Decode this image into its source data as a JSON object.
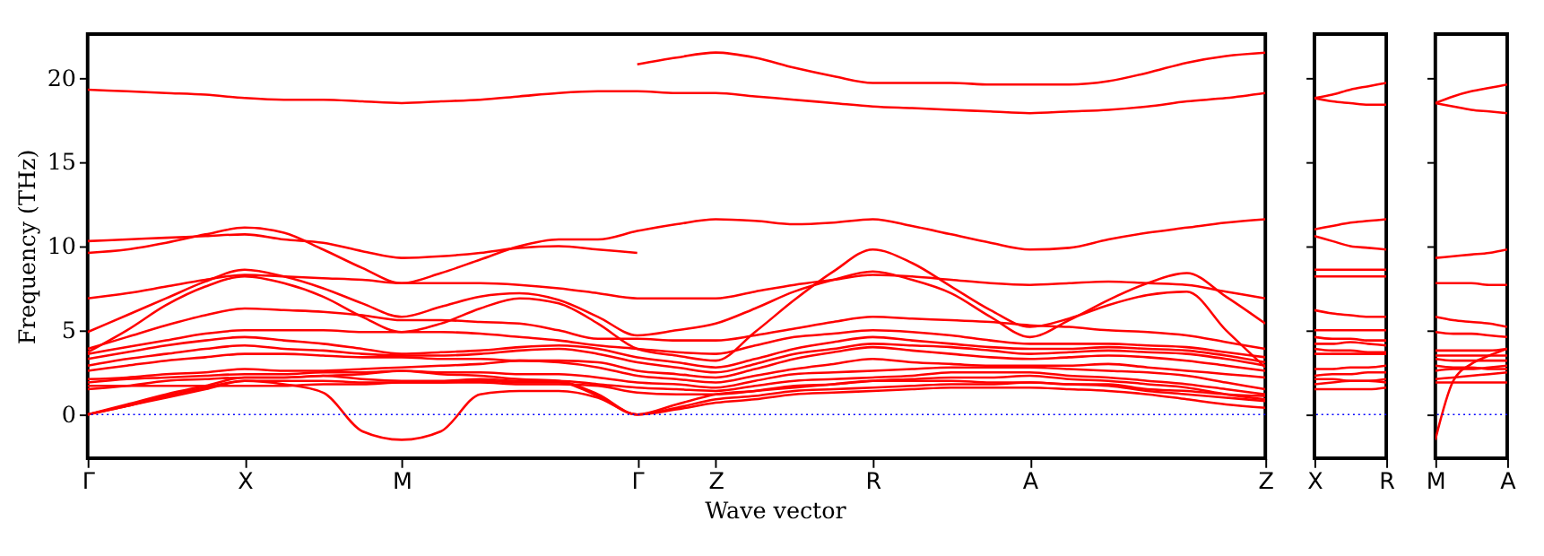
{
  "chart_data": [
    {
      "type": "line",
      "xlabel": "Wave vector",
      "ylabel": "Frequency (THz)",
      "ylim": [
        -2.6,
        22.6
      ],
      "categories": [
        "Γ",
        null,
        null,
        null,
        "X",
        null,
        null,
        null,
        "M",
        null,
        null,
        null,
        null,
        null,
        "Γ",
        null,
        "Z",
        null,
        null,
        null,
        "R",
        null,
        null,
        null,
        "A",
        null,
        null,
        null,
        null,
        null,
        "Z"
      ],
      "yticks": [
        0,
        5,
        10,
        15,
        20
      ],
      "grid": false,
      "ref_lines": [
        {
          "axis": "y",
          "value": 0,
          "color": "#0000ff",
          "line_style": "dotted"
        }
      ],
      "series": [
        {
          "color": "#ff0000",
          "values": [
            null,
            null,
            null,
            null,
            null,
            null,
            null,
            null,
            null,
            null,
            null,
            null,
            null,
            null,
            20.8,
            21.2,
            21.5,
            21.2,
            20.6,
            20.1,
            19.7,
            19.7,
            19.7,
            19.6,
            19.6,
            19.6,
            19.8,
            20.3,
            20.9,
            21.3,
            21.5
          ]
        },
        {
          "color": "#ff0000",
          "values": [
            19.3,
            19.2,
            19.1,
            19.0,
            18.8,
            18.7,
            18.7,
            18.6,
            18.5,
            18.6,
            18.7,
            18.9,
            19.1,
            19.2,
            19.2,
            19.1,
            19.1,
            18.9,
            18.7,
            18.5,
            18.3,
            18.2,
            18.1,
            18.0,
            17.9,
            18.0,
            18.1,
            18.3,
            18.6,
            18.8,
            19.1
          ]
        },
        {
          "color": "#ff0000",
          "values": [
            10.3,
            10.4,
            10.5,
            10.6,
            10.7,
            10.4,
            10.2,
            9.7,
            9.3,
            9.4,
            9.6,
            9.9,
            10.0,
            9.8,
            9.6,
            null,
            null,
            null,
            null,
            null,
            null,
            null,
            null,
            null,
            null,
            null,
            null,
            null,
            null,
            null,
            null
          ]
        },
        {
          "color": "#ff0000",
          "values": [
            9.6,
            9.8,
            10.2,
            10.7,
            11.1,
            10.8,
            9.8,
            8.7,
            7.8,
            8.4,
            9.2,
            10.0,
            10.4,
            10.4,
            10.9,
            11.3,
            11.6,
            11.5,
            11.3,
            11.4,
            11.6,
            11.2,
            10.7,
            10.2,
            9.8,
            9.9,
            10.4,
            10.8,
            11.1,
            11.4,
            11.6
          ]
        },
        {
          "color": "#ff0000",
          "values": [
            6.9,
            7.2,
            7.6,
            8.0,
            8.3,
            8.2,
            8.1,
            8.0,
            7.8,
            7.8,
            7.8,
            7.7,
            7.5,
            7.2,
            6.9,
            6.9,
            6.9,
            7.3,
            7.7,
            8.0,
            8.3,
            8.2,
            8.0,
            7.8,
            7.7,
            7.8,
            7.9,
            7.8,
            7.7,
            7.3,
            6.9
          ]
        },
        {
          "color": "#ff0000",
          "values": [
            4.9,
            5.9,
            6.9,
            7.9,
            8.6,
            8.2,
            7.5,
            6.6,
            5.8,
            6.4,
            7.0,
            7.2,
            6.8,
            5.8,
            4.7,
            5.0,
            5.4,
            6.3,
            7.3,
            8.0,
            8.5,
            8.0,
            7.2,
            5.8,
            4.6,
            5.6,
            6.8,
            7.8,
            8.4,
            7.0,
            5.4
          ]
        },
        {
          "color": "#ff0000",
          "values": [
            3.7,
            5.0,
            6.5,
            7.6,
            8.2,
            7.8,
            7.0,
            5.8,
            4.9,
            5.4,
            6.3,
            6.9,
            6.6,
            5.4,
            3.9,
            3.5,
            3.2,
            4.9,
            6.8,
            8.5,
            9.8,
            9.0,
            7.6,
            6.2,
            5.2,
            5.7,
            6.5,
            7.1,
            7.3,
            5.0,
            2.8
          ]
        },
        {
          "color": "#ff0000",
          "values": [
            3.9,
            4.6,
            5.3,
            5.9,
            6.3,
            6.2,
            6.1,
            5.9,
            5.6,
            5.6,
            5.5,
            5.4,
            5.0,
            4.5,
            4.5,
            4.4,
            4.4,
            4.7,
            5.1,
            5.5,
            5.8,
            5.7,
            5.6,
            5.5,
            5.3,
            5.2,
            5.0,
            4.9,
            4.7,
            4.3,
            3.9
          ]
        },
        {
          "color": "#ff0000",
          "values": [
            3.6,
            4.0,
            4.4,
            4.8,
            5.0,
            5.0,
            5.0,
            4.9,
            4.9,
            4.9,
            4.8,
            4.6,
            4.4,
            4.1,
            3.9,
            3.7,
            3.6,
            4.1,
            4.6,
            4.8,
            5.0,
            4.9,
            4.7,
            4.4,
            4.2,
            4.2,
            4.2,
            4.1,
            4.0,
            3.7,
            3.4
          ]
        },
        {
          "color": "#ff0000",
          "values": [
            3.3,
            3.7,
            4.1,
            4.4,
            4.6,
            4.4,
            4.2,
            3.9,
            3.6,
            3.7,
            3.8,
            4.0,
            4.1,
            3.9,
            3.4,
            3.1,
            2.8,
            3.3,
            3.9,
            4.3,
            4.6,
            4.4,
            4.2,
            4.0,
            3.9,
            3.9,
            4.0,
            3.9,
            3.8,
            3.5,
            3.1
          ]
        },
        {
          "color": "#ff0000",
          "values": [
            2.9,
            3.3,
            3.6,
            3.9,
            4.1,
            3.9,
            3.8,
            3.6,
            3.5,
            3.5,
            3.6,
            3.8,
            3.9,
            3.6,
            3.1,
            2.8,
            2.5,
            3.0,
            3.6,
            3.9,
            4.2,
            4.1,
            4.0,
            3.8,
            3.6,
            3.7,
            3.8,
            3.7,
            3.6,
            3.3,
            2.9
          ]
        },
        {
          "color": "#ff0000",
          "values": [
            2.6,
            2.9,
            3.2,
            3.4,
            3.6,
            3.6,
            3.5,
            3.4,
            3.4,
            3.3,
            3.3,
            3.2,
            3.2,
            3.1,
            2.6,
            2.4,
            2.2,
            2.7,
            3.3,
            3.7,
            4.0,
            3.8,
            3.6,
            3.4,
            3.3,
            3.4,
            3.5,
            3.4,
            3.2,
            2.9,
            2.6
          ]
        },
        {
          "color": "#ff0000",
          "values": [
            2.1,
            2.2,
            2.4,
            2.5,
            2.7,
            2.6,
            2.6,
            2.7,
            2.8,
            2.9,
            3.0,
            3.2,
            3.1,
            2.8,
            2.3,
            2.1,
            1.9,
            2.3,
            2.7,
            3.0,
            3.3,
            3.1,
            3.0,
            2.9,
            2.9,
            2.9,
            3.0,
            2.8,
            2.6,
            2.4,
            2.2
          ]
        },
        {
          "color": "#ff0000",
          "values": [
            1.9,
            2.1,
            2.2,
            2.3,
            2.4,
            2.4,
            2.5,
            2.5,
            2.6,
            2.5,
            2.5,
            2.4,
            2.4,
            2.2,
            1.9,
            1.8,
            1.6,
            2.0,
            2.4,
            2.5,
            2.6,
            2.7,
            2.8,
            2.8,
            2.8,
            2.7,
            2.6,
            2.5,
            2.3,
            1.9,
            1.5
          ]
        },
        {
          "color": "#ff0000",
          "values": [
            1.5,
            1.7,
            2.0,
            2.1,
            2.2,
            2.2,
            2.3,
            2.1,
            2.0,
            2.0,
            2.1,
            2.0,
            2.0,
            1.8,
            1.6,
            1.5,
            1.4,
            1.7,
            2.0,
            2.1,
            2.2,
            2.3,
            2.5,
            2.5,
            2.5,
            2.3,
            2.2,
            2.0,
            1.8,
            1.5,
            1.2
          ]
        },
        {
          "color": "#ff0000",
          "values": [
            1.7,
            1.7,
            1.7,
            1.7,
            1.7,
            1.7,
            1.8,
            1.8,
            1.9,
            1.9,
            1.9,
            1.8,
            1.8,
            1.7,
            1.3,
            1.2,
            1.2,
            1.4,
            1.7,
            1.8,
            2.0,
            2.1,
            2.2,
            2.2,
            2.3,
            2.1,
            2.0,
            1.8,
            1.6,
            1.2,
            0.9
          ]
        },
        {
          "color": "#ff0000",
          "values": [
            0,
            0.6,
            1.2,
            1.7,
            2.2,
            2.2,
            2.3,
            2.4,
            2.6,
            2.4,
            2.3,
            2.1,
            2.0,
            1.2,
            0,
            0.6,
            1.2,
            1.4,
            1.6,
            1.8,
            2.0,
            2.0,
            2.0,
            1.9,
            1.9,
            1.8,
            1.8,
            1.5,
            1.4,
            1.2,
            1.1
          ]
        },
        {
          "color": "#ff0000",
          "values": [
            0,
            0.5,
            1.0,
            1.5,
            2.0,
            2.0,
            2.0,
            1.9,
            1.9,
            1.9,
            2.0,
            1.9,
            1.9,
            1.1,
            0,
            0.4,
            0.9,
            1.1,
            1.4,
            1.5,
            1.6,
            1.7,
            1.8,
            1.8,
            1.9,
            1.8,
            1.7,
            1.4,
            1.2,
            1.0,
            0.8
          ]
        },
        {
          "color": "#ff0000",
          "values": [
            0,
            0.5,
            1.1,
            1.6,
            2.0,
            1.8,
            1.3,
            -1.0,
            -1.5,
            -1.0,
            1.2,
            1.4,
            1.4,
            1.0,
            0,
            0.3,
            0.7,
            0.9,
            1.2,
            1.3,
            1.4,
            1.5,
            1.6,
            1.6,
            1.6,
            1.5,
            1.4,
            1.2,
            0.9,
            0.6,
            0.4
          ]
        }
      ]
    },
    {
      "type": "line",
      "ylim": [
        -2.6,
        22.6
      ],
      "tick_labels": "x",
      "categories": [
        "X",
        null,
        null,
        null,
        "R"
      ],
      "yticks": [
        {
          "value": 0,
          "label": null
        },
        {
          "value": 5,
          "label": null
        },
        {
          "value": 10,
          "label": null
        },
        {
          "value": 15,
          "label": null
        },
        {
          "value": 20,
          "label": null
        }
      ],
      "grid": false,
      "ref_lines": [
        {
          "axis": "y",
          "value": 0,
          "color": "#0000ff",
          "line_style": "dotted"
        }
      ],
      "series": [
        {
          "color": "#ff0000",
          "values": [
            18.8,
            19.0,
            19.3,
            19.5,
            19.7
          ]
        },
        {
          "color": "#ff0000",
          "values": [
            18.8,
            18.6,
            18.5,
            18.4,
            18.4
          ]
        },
        {
          "color": "#ff0000",
          "values": [
            11.0,
            11.2,
            11.4,
            11.5,
            11.6
          ]
        },
        {
          "color": "#ff0000",
          "values": [
            10.6,
            10.3,
            10.0,
            9.9,
            9.8
          ]
        },
        {
          "color": "#ff0000",
          "values": [
            8.6,
            8.6,
            8.6,
            8.6,
            8.6
          ]
        },
        {
          "color": "#ff0000",
          "values": [
            8.2,
            8.2,
            8.2,
            8.2,
            8.2
          ]
        },
        {
          "color": "#ff0000",
          "values": [
            6.2,
            6.0,
            5.9,
            5.8,
            5.8
          ]
        },
        {
          "color": "#ff0000",
          "values": [
            5.0,
            5.0,
            5.0,
            5.0,
            5.0
          ]
        },
        {
          "color": "#ff0000",
          "values": [
            4.6,
            4.5,
            4.5,
            4.4,
            4.4
          ]
        },
        {
          "color": "#ff0000",
          "values": [
            4.2,
            4.2,
            4.3,
            4.2,
            4.1
          ]
        },
        {
          "color": "#ff0000",
          "values": [
            3.9,
            3.8,
            3.8,
            3.7,
            3.7
          ]
        },
        {
          "color": "#ff0000",
          "values": [
            3.6,
            3.6,
            3.6,
            3.6,
            3.6
          ]
        },
        {
          "color": "#ff0000",
          "values": [
            2.7,
            2.7,
            2.8,
            2.8,
            2.9
          ]
        },
        {
          "color": "#ff0000",
          "values": [
            2.3,
            2.4,
            2.4,
            2.5,
            2.5
          ]
        },
        {
          "color": "#ff0000",
          "values": [
            2.1,
            2.1,
            2.0,
            2.0,
            1.9
          ]
        },
        {
          "color": "#ff0000",
          "values": [
            1.8,
            1.9,
            2.0,
            2.0,
            2.1
          ]
        },
        {
          "color": "#ff0000",
          "values": [
            1.5,
            1.5,
            1.5,
            1.5,
            1.6
          ]
        }
      ]
    },
    {
      "type": "line",
      "ylim": [
        -2.6,
        22.6
      ],
      "tick_labels": "x",
      "categories": [
        "M",
        null,
        null,
        null,
        "A"
      ],
      "yticks": [
        {
          "value": 0,
          "label": null
        },
        {
          "value": 5,
          "label": null
        },
        {
          "value": 10,
          "label": null
        },
        {
          "value": 15,
          "label": null
        },
        {
          "value": 20,
          "label": null
        }
      ],
      "grid": false,
      "ref_lines": [
        {
          "axis": "y",
          "value": 0,
          "color": "#0000ff",
          "line_style": "dotted"
        }
      ],
      "series": [
        {
          "color": "#ff0000",
          "values": [
            18.5,
            18.9,
            19.2,
            19.4,
            19.6
          ]
        },
        {
          "color": "#ff0000",
          "values": [
            18.5,
            18.3,
            18.1,
            18.0,
            17.9
          ]
        },
        {
          "color": "#ff0000",
          "values": [
            9.3,
            9.4,
            9.5,
            9.6,
            9.8
          ]
        },
        {
          "color": "#ff0000",
          "values": [
            7.8,
            7.8,
            7.8,
            7.7,
            7.7
          ]
        },
        {
          "color": "#ff0000",
          "values": [
            5.8,
            5.6,
            5.5,
            5.4,
            5.2
          ]
        },
        {
          "color": "#ff0000",
          "values": [
            4.9,
            4.8,
            4.8,
            4.7,
            4.6
          ]
        },
        {
          "color": "#ff0000",
          "values": [
            3.8,
            3.8,
            3.8,
            3.8,
            3.9
          ]
        },
        {
          "color": "#ff0000",
          "values": [
            3.5,
            3.5,
            3.5,
            3.5,
            3.5
          ]
        },
        {
          "color": "#ff0000",
          "values": [
            3.3,
            3.2,
            3.2,
            3.2,
            3.2
          ]
        },
        {
          "color": "#ff0000",
          "values": [
            2.9,
            2.8,
            2.8,
            2.7,
            2.7
          ]
        },
        {
          "color": "#ff0000",
          "values": [
            2.6,
            2.7,
            2.7,
            2.8,
            2.9
          ]
        },
        {
          "color": "#ff0000",
          "values": [
            2.1,
            2.2,
            2.3,
            2.4,
            2.5
          ]
        },
        {
          "color": "#ff0000",
          "values": [
            1.9,
            1.9,
            1.9,
            1.9,
            1.9
          ]
        },
        {
          "color": "#ff0000",
          "values": [
            -1.5,
            2.0,
            3.0,
            3.5,
            3.9
          ]
        }
      ]
    }
  ]
}
